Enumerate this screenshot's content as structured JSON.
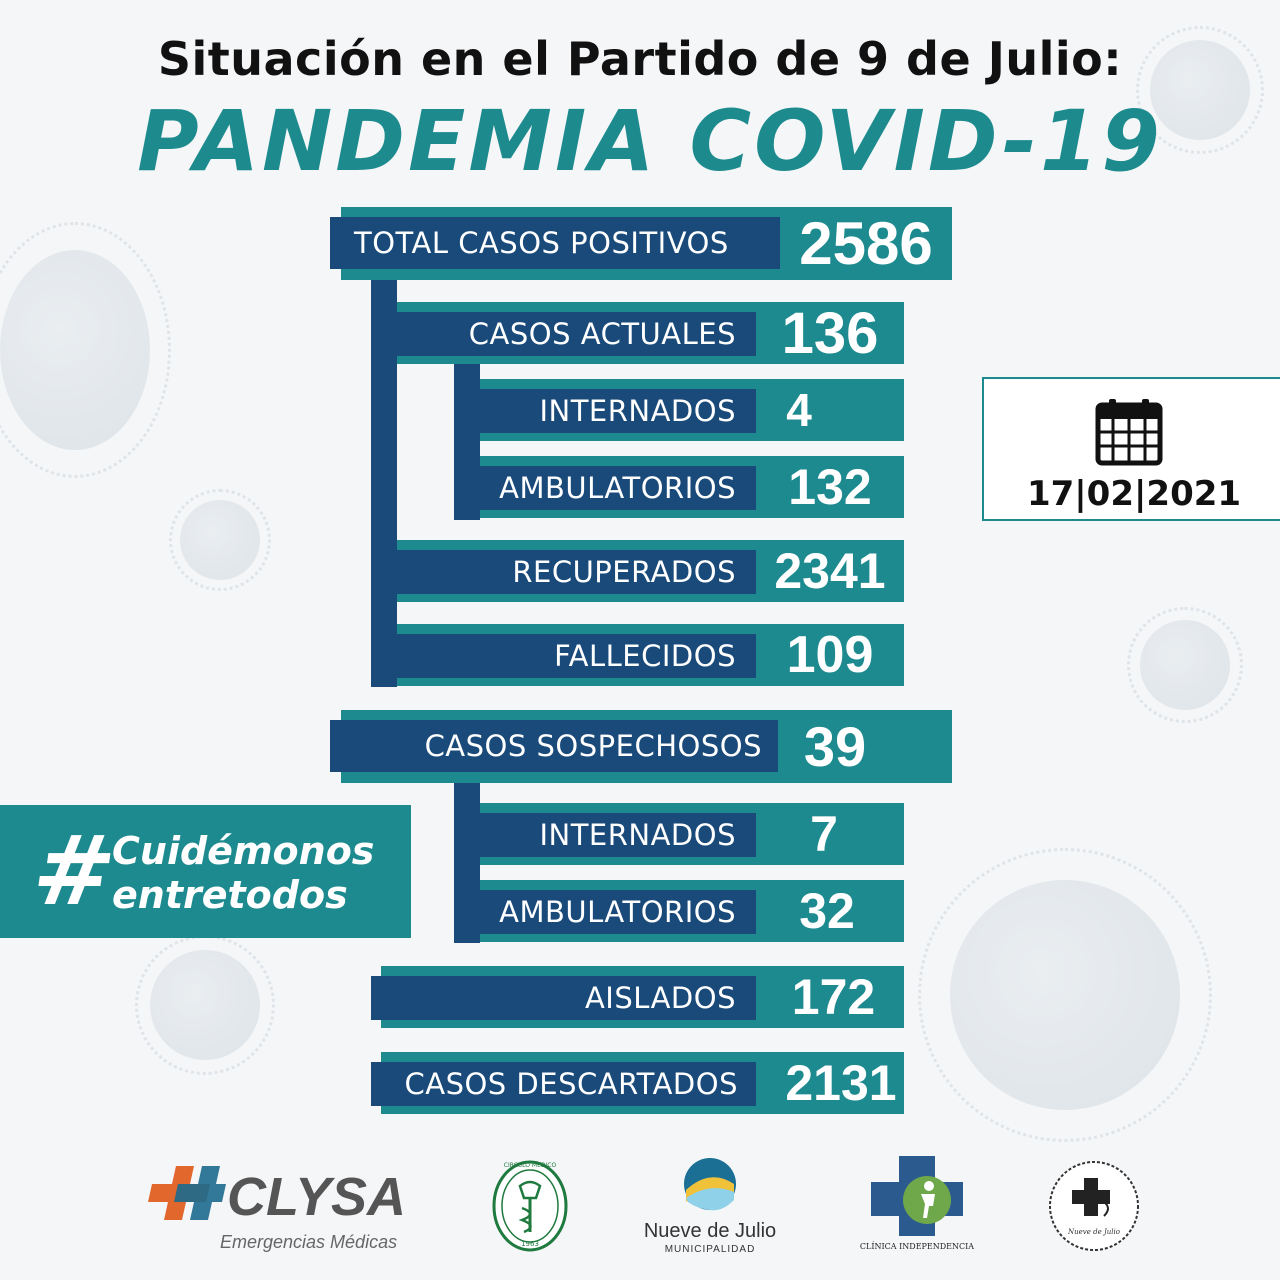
{
  "title_line1": "Situación en el Partido de 9 de Julio:",
  "title_line2": "PANDEMIA COVID-19",
  "stats": {
    "total": {
      "label": "TOTAL CASOS POSITIVOS",
      "value": "2586"
    },
    "actuales": {
      "label": "CASOS ACTUALES",
      "value": "136"
    },
    "actuales_internados": {
      "label": "INTERNADOS",
      "value": "4"
    },
    "actuales_ambulatorios": {
      "label": "AMBULATORIOS",
      "value": "132"
    },
    "recuperados": {
      "label": "RECUPERADOS",
      "value": "2341"
    },
    "fallecidos": {
      "label": "FALLECIDOS",
      "value": "109"
    },
    "sospechosos": {
      "label": "CASOS SOSPECHOSOS",
      "value": "39"
    },
    "sospechosos_internados": {
      "label": "INTERNADOS",
      "value": "7"
    },
    "sospechosos_ambulatorios": {
      "label": "AMBULATORIOS",
      "value": "32"
    },
    "aislados": {
      "label": "AISLADOS",
      "value": "172"
    },
    "descartados": {
      "label": "CASOS DESCARTADOS",
      "value": "2131"
    }
  },
  "date": "17|02|2021",
  "hashtag": {
    "symbol": "#",
    "line1": "Cuidémonos",
    "line2": "entretodos"
  },
  "logos": {
    "clysa_name": "CLYSA",
    "clysa_sub": "Emergencias Médicas",
    "circulo_text": "CIRCULO MEDICO",
    "circulo_year": "1963",
    "nueve_name": "Nueve de Julio",
    "nueve_sub": "MUNICIPALIDAD",
    "clinica_name": "CLÍNICA INDEPENDENCIA",
    "last_text": "Nueve de Julio"
  },
  "colors": {
    "teal": "#1d8a8f",
    "navy": "#194a7a",
    "title_teal": "#1d8b8e"
  }
}
